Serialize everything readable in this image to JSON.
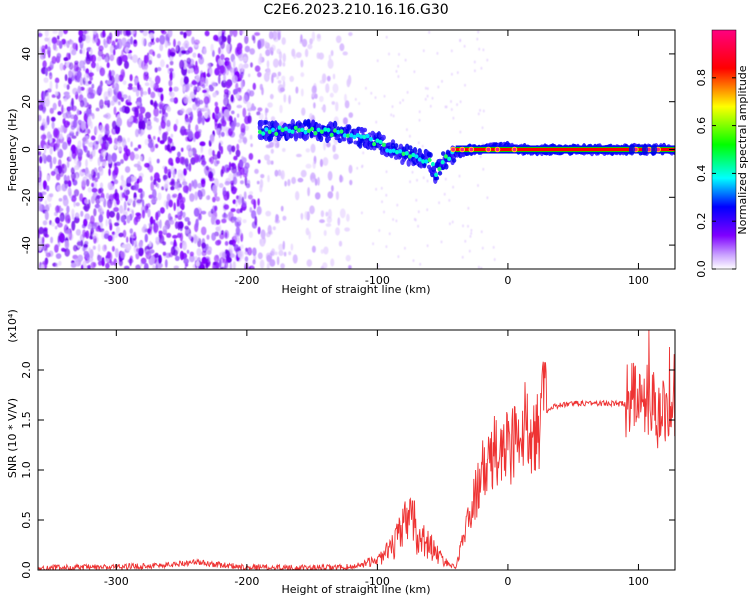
{
  "figure": {
    "title": "C2E6.2023.210.16.16.G30"
  },
  "chart_data": [
    {
      "type": "heatmap",
      "title": "C2E6.2023.210.16.16.G30",
      "xlabel": "Height of straight line (km)",
      "ylabel": "Frequency (Hz)",
      "xlim": [
        -360,
        128
      ],
      "ylim": [
        -50,
        50
      ],
      "xticks": [
        -300,
        -200,
        -100,
        0,
        100
      ],
      "yticks": [
        -40,
        -20,
        0,
        20,
        40
      ],
      "colorbar": {
        "label": "Normalized spectral amplitude",
        "range": [
          0.0,
          1.0
        ],
        "ticks": [
          0.0,
          0.2,
          0.4,
          0.6,
          0.8
        ],
        "colors": [
          "#ffffff",
          "#7f00ff",
          "#0000ff",
          "#00ffff",
          "#00ff00",
          "#ffff00",
          "#ff0000",
          "#ff0080"
        ]
      },
      "noise_region_km": [
        -360,
        -120
      ],
      "signal_track": {
        "x": [
          -190,
          -170,
          -150,
          -130,
          -110,
          -100,
          -90,
          -80,
          -70,
          -60,
          -55,
          -50,
          -45,
          -40,
          -35,
          -30,
          -20,
          -10,
          0,
          10,
          50,
          90,
          110,
          128
        ],
        "y": [
          8,
          8,
          8,
          7,
          5,
          3,
          0,
          -2,
          -3,
          -5,
          -10,
          -5,
          -3,
          -2,
          -1,
          0,
          0,
          1,
          1,
          0,
          0,
          0,
          0,
          0
        ]
      },
      "carrier_line": {
        "x_start": -40,
        "x_end": 128,
        "freq": 0
      }
    },
    {
      "type": "line",
      "xlabel": "Height of straight line (km)",
      "ylabel": "SNR (10 * V/V)",
      "yscale_label": "(x10⁴)",
      "xlim": [
        -360,
        128
      ],
      "ylim": [
        0,
        2.4
      ],
      "xticks": [
        -300,
        -200,
        -100,
        0,
        100
      ],
      "yticks": [
        0.0,
        0.5,
        1.0,
        1.5,
        2.0
      ],
      "color": "#ee3333",
      "x": [
        -360,
        -300,
        -260,
        -240,
        -220,
        -200,
        -150,
        -120,
        -100,
        -90,
        -80,
        -75,
        -70,
        -60,
        -50,
        -40,
        -35,
        -30,
        -25,
        -20,
        -10,
        0,
        10,
        20,
        30,
        40,
        60,
        90,
        95,
        100,
        105,
        110,
        115,
        120,
        128
      ],
      "y": [
        0.02,
        0.03,
        0.05,
        0.08,
        0.05,
        0.03,
        0.02,
        0.03,
        0.1,
        0.2,
        0.4,
        0.65,
        0.35,
        0.25,
        0.1,
        0.02,
        0.3,
        0.5,
        0.75,
        0.95,
        1.15,
        1.25,
        1.35,
        1.5,
        1.6,
        1.65,
        1.67,
        1.66,
        1.7,
        1.8,
        1.65,
        1.7,
        1.55,
        1.63,
        1.62
      ]
    }
  ]
}
